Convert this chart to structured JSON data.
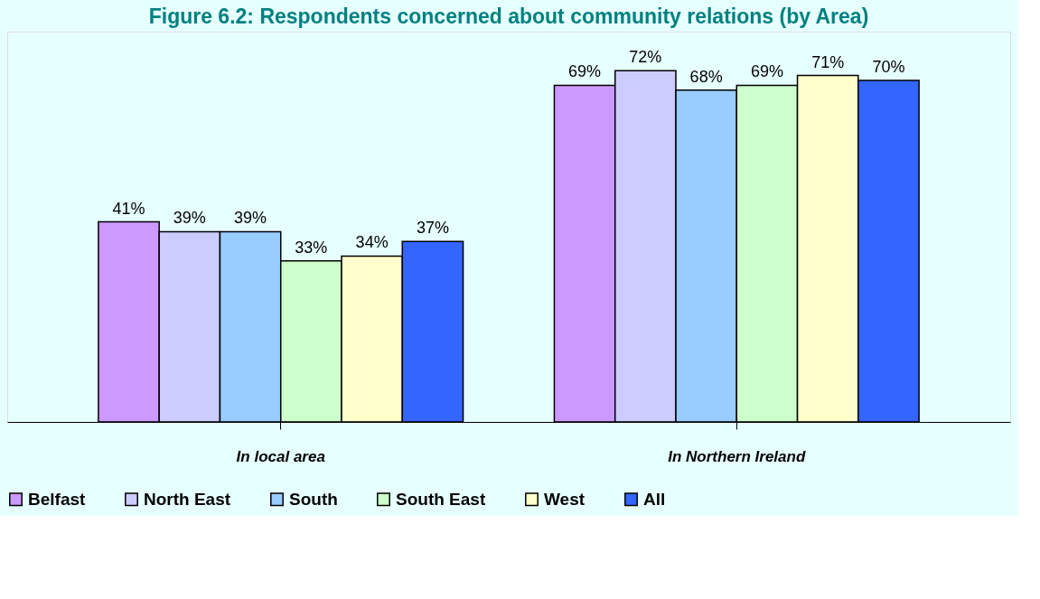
{
  "chart_data": {
    "type": "bar",
    "title": "Figure 6.2:  Respondents concerned about community relations (by Area)",
    "categories": [
      "In local area",
      "In Northern Ireland"
    ],
    "series": [
      {
        "name": "Belfast",
        "color": "#cc99ff",
        "values": [
          41,
          69
        ],
        "value_labels": [
          "41%",
          "69%"
        ]
      },
      {
        "name": "North East",
        "color": "#ccccff",
        "values": [
          39,
          72
        ],
        "value_labels": [
          "39%",
          "72%"
        ]
      },
      {
        "name": "South",
        "color": "#99ccff",
        "values": [
          39,
          68
        ],
        "value_labels": [
          "39%",
          "68%"
        ]
      },
      {
        "name": "South East",
        "color": "#ccffcc",
        "values": [
          33,
          69
        ],
        "value_labels": [
          "33%",
          "69%"
        ]
      },
      {
        "name": "West",
        "color": "#ffffcc",
        "values": [
          34,
          71
        ],
        "value_labels": [
          "34%",
          "71%"
        ]
      },
      {
        "name": "All",
        "color": "#3366ff",
        "values": [
          37,
          70
        ],
        "value_labels": [
          "37%",
          "70%"
        ]
      }
    ],
    "ylim": [
      0,
      80
    ],
    "grid": false,
    "legend": "bottom",
    "tick_labels": "x"
  }
}
